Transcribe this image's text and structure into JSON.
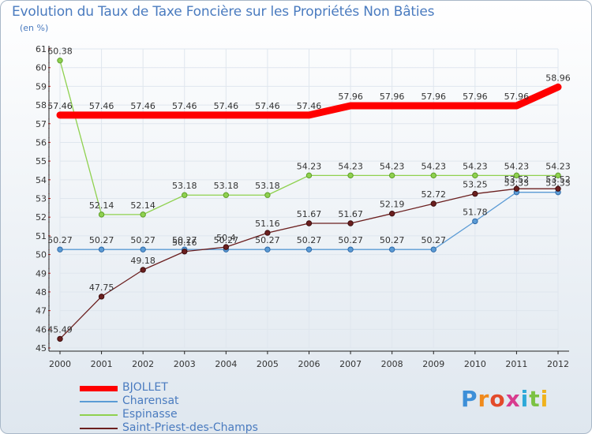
{
  "header": {
    "title": "Evolution du Taux de Taxe Foncière sur les Propriétés Non Bâties",
    "unit": "(en %)"
  },
  "brand": {
    "logo_text": "Proxiti"
  },
  "chart_data": {
    "type": "line",
    "title": "Evolution du Taux de Taxe Foncière sur les Propriétés Non Bâties",
    "ylabel": "(en %)",
    "xlabel": "",
    "x": [
      "2000",
      "2001",
      "2002",
      "2003",
      "2004",
      "2005",
      "2006",
      "2007",
      "2008",
      "2009",
      "2010",
      "2011",
      "2012"
    ],
    "ylim": [
      45,
      61
    ],
    "yticks": [
      45,
      46,
      47,
      48,
      49,
      50,
      51,
      52,
      53,
      54,
      55,
      56,
      57,
      58,
      59,
      60,
      61
    ],
    "grid": true,
    "legend_position": "bottom-left",
    "series": [
      {
        "name": "BJOLLET",
        "color": "#ff0000",
        "values": [
          57.46,
          57.46,
          57.46,
          57.46,
          57.46,
          57.46,
          57.46,
          57.96,
          57.96,
          57.96,
          57.96,
          57.96,
          58.96
        ],
        "labels": [
          "57.46",
          "57.46",
          "57.46",
          "57.46",
          "57.46",
          "57.46",
          "57.46",
          "57.96",
          "57.96",
          "57.96",
          "57.96",
          "57.96",
          "58.96"
        ]
      },
      {
        "name": "Charensat",
        "color": "#5b9bd5",
        "values": [
          50.27,
          50.27,
          50.27,
          50.27,
          50.27,
          50.27,
          50.27,
          50.27,
          50.27,
          50.27,
          51.78,
          53.33,
          53.33
        ],
        "labels": [
          "50.27",
          "50.27",
          "50.27",
          "50.27",
          "50.27",
          "50.27",
          "50.27",
          "50.27",
          "50.27",
          "50.27",
          "51.78",
          "53.33",
          "53.33"
        ]
      },
      {
        "name": "Espinasse",
        "color": "#8fd14f",
        "values": [
          60.38,
          52.14,
          52.14,
          53.18,
          53.18,
          53.18,
          54.23,
          54.23,
          54.23,
          54.23,
          54.23,
          54.23,
          54.23
        ],
        "labels": [
          "60.38",
          "52.14",
          "52.14",
          "53.18",
          "53.18",
          "53.18",
          "54.23",
          "54.23",
          "54.23",
          "54.23",
          "54.23",
          "54.23",
          "54.23"
        ]
      },
      {
        "name": "Saint-Priest-des-Champs",
        "color": "#6b1f1f",
        "values": [
          45.49,
          47.75,
          49.18,
          50.16,
          50.4,
          51.16,
          51.67,
          51.67,
          52.19,
          52.72,
          53.25,
          53.52,
          53.52
        ],
        "labels": [
          "45.49",
          "47.75",
          "49.18",
          "50.16",
          "50.4",
          "51.16",
          "51.67",
          "51.67",
          "52.19",
          "52.72",
          "53.25",
          "53.52",
          "53.52"
        ]
      }
    ]
  }
}
